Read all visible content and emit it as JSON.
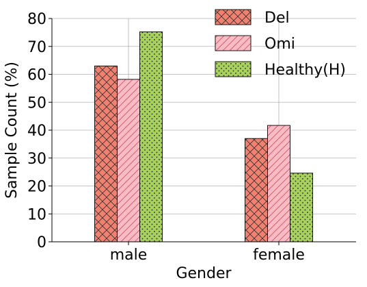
{
  "chart_data": {
    "type": "bar",
    "categories": [
      "male",
      "female"
    ],
    "series": [
      {
        "name": "Del",
        "values": [
          63,
          37
        ],
        "color": "#f08070",
        "hatch": "crosshatch"
      },
      {
        "name": "Omi",
        "values": [
          58.2,
          41.7
        ],
        "color": "#f9bcc4",
        "hatch": "diagonal"
      },
      {
        "name": "Healthy(H)",
        "values": [
          75.2,
          24.6
        ],
        "color": "#a8d05f",
        "hatch": "dots"
      }
    ],
    "xlabel": "Gender",
    "ylabel": "Sample Count (%)",
    "ylim": [
      0,
      80
    ],
    "yticks": [
      "0",
      "10",
      "20",
      "30",
      "40",
      "50",
      "60",
      "70",
      "80"
    ],
    "grid": true,
    "legend_position": "top-right"
  }
}
